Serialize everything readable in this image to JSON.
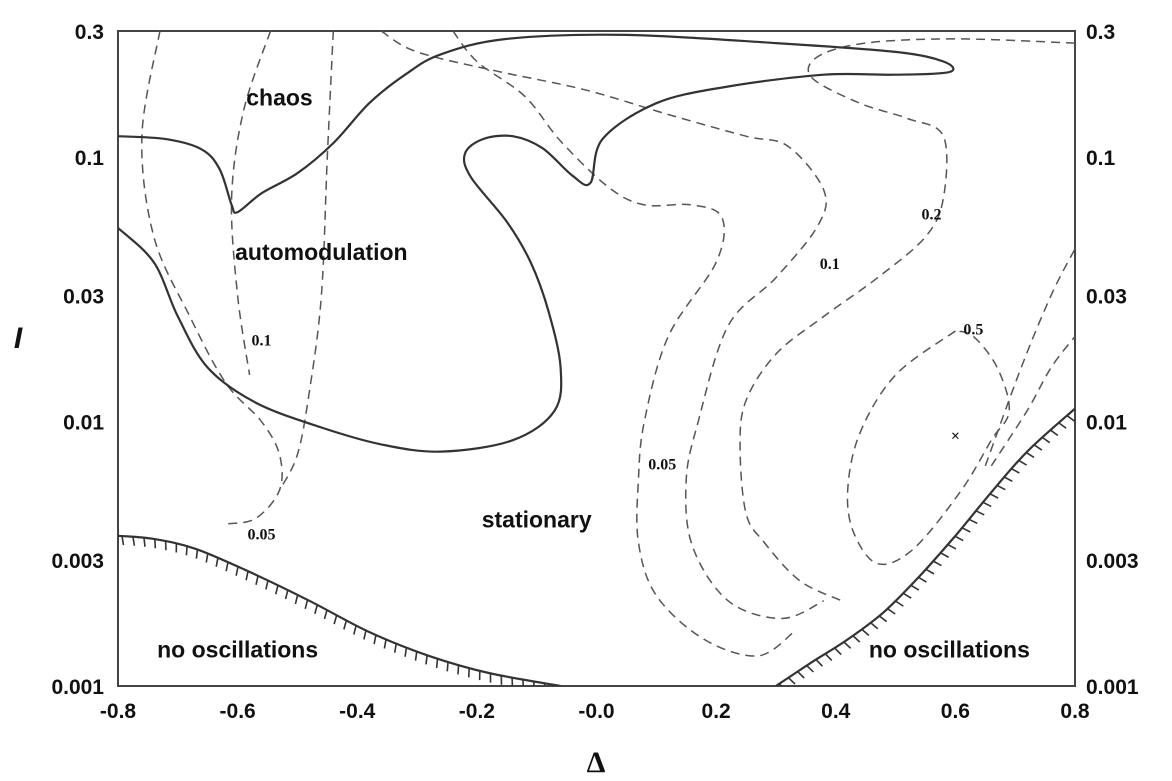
{
  "chart_data": {
    "type": "contour",
    "xlabel": "Δ",
    "ylabel": "I",
    "xlim": [
      -0.8,
      0.8
    ],
    "ylim": [
      0.001,
      0.3
    ],
    "yscale": "log",
    "x_ticks": [
      "-0.8",
      "-0.6",
      "-0.4",
      "-0.2",
      "-0.0",
      "0.2",
      "0.4",
      "0.6",
      "0.8"
    ],
    "x_tick_values": [
      -0.8,
      -0.6,
      -0.4,
      -0.2,
      0.0,
      0.2,
      0.4,
      0.6,
      0.8
    ],
    "y_ticks": [
      "0.001",
      "0.003",
      "0.01",
      "0.03",
      "0.1",
      "0.3"
    ],
    "y_tick_values": [
      0.001,
      0.003,
      0.01,
      0.03,
      0.1,
      0.3
    ],
    "regions": [
      {
        "label": "chaos",
        "x": -0.53,
        "y": 0.165
      },
      {
        "label": "automodulation",
        "x": -0.46,
        "y": 0.043
      },
      {
        "label": "stationary",
        "x": -0.1,
        "y": 0.0042
      },
      {
        "label": "no oscillations",
        "x": -0.6,
        "y": 0.00135
      },
      {
        "label": "no oscillations",
        "x": 0.59,
        "y": 0.00135
      }
    ],
    "contour_labels": [
      {
        "label": "0.1",
        "x": -0.56,
        "y": 0.02
      },
      {
        "label": "0.05",
        "x": -0.56,
        "y": 0.0037
      },
      {
        "label": "0.05",
        "x": 0.11,
        "y": 0.0068
      },
      {
        "label": "0.1",
        "x": 0.39,
        "y": 0.039
      },
      {
        "label": "0.2",
        "x": 0.56,
        "y": 0.06
      },
      {
        "label": "0.5",
        "x": 0.63,
        "y": 0.022
      }
    ],
    "marker": {
      "label": "×",
      "x": 0.6,
      "y": 0.0087
    },
    "solid_curves": [
      {
        "points": [
          [
            -0.8,
            0.12
          ],
          [
            -0.72,
            0.117
          ],
          [
            -0.66,
            0.107
          ],
          [
            -0.63,
            0.09
          ],
          [
            -0.61,
            0.066
          ],
          [
            -0.6,
            0.062
          ],
          [
            -0.56,
            0.073
          ],
          [
            -0.5,
            0.087
          ],
          [
            -0.44,
            0.113
          ],
          [
            -0.38,
            0.16
          ],
          [
            -0.32,
            0.205
          ],
          [
            -0.26,
            0.245
          ],
          [
            -0.15,
            0.28
          ],
          [
            0.05,
            0.29
          ],
          [
            0.3,
            0.27
          ],
          [
            0.5,
            0.25
          ],
          [
            0.58,
            0.23
          ],
          [
            0.59,
            0.21
          ],
          [
            0.5,
            0.205
          ],
          [
            0.38,
            0.205
          ],
          [
            0.22,
            0.185
          ],
          [
            0.1,
            0.16
          ],
          [
            0.01,
            0.117
          ],
          [
            -0.01,
            0.08
          ],
          [
            -0.04,
            0.085
          ],
          [
            -0.09,
            0.108
          ],
          [
            -0.14,
            0.12
          ],
          [
            -0.19,
            0.117
          ],
          [
            -0.22,
            0.103
          ],
          [
            -0.21,
            0.084
          ],
          [
            -0.15,
            0.057
          ],
          [
            -0.11,
            0.04
          ],
          [
            -0.08,
            0.026
          ],
          [
            -0.06,
            0.016
          ],
          [
            -0.07,
            0.011
          ],
          [
            -0.14,
            0.0085
          ],
          [
            -0.26,
            0.0077
          ],
          [
            -0.36,
            0.0082
          ],
          [
            -0.46,
            0.0095
          ],
          [
            -0.57,
            0.0118
          ],
          [
            -0.65,
            0.016
          ],
          [
            -0.7,
            0.025
          ],
          [
            -0.74,
            0.04
          ],
          [
            -0.8,
            0.054
          ]
        ]
      }
    ],
    "hatched_boundaries": [
      {
        "points": [
          [
            -0.8,
            0.0037
          ],
          [
            -0.74,
            0.0036
          ],
          [
            -0.67,
            0.0033
          ],
          [
            -0.58,
            0.0027
          ],
          [
            -0.48,
            0.0021
          ],
          [
            -0.38,
            0.0016
          ],
          [
            -0.28,
            0.0013
          ],
          [
            -0.18,
            0.00112
          ],
          [
            -0.06,
            0.001
          ]
        ]
      },
      {
        "points": [
          [
            0.3,
            0.001
          ],
          [
            0.36,
            0.00123
          ],
          [
            0.42,
            0.0015
          ],
          [
            0.48,
            0.0019
          ],
          [
            0.54,
            0.0026
          ],
          [
            0.6,
            0.0037
          ],
          [
            0.66,
            0.0054
          ],
          [
            0.72,
            0.0077
          ],
          [
            0.8,
            0.0112
          ]
        ]
      }
    ],
    "dashed_curves": [
      {
        "points": [
          [
            -0.73,
            0.3
          ],
          [
            -0.76,
            0.12
          ],
          [
            -0.74,
            0.05
          ],
          [
            -0.68,
            0.025
          ],
          [
            -0.62,
            0.014
          ],
          [
            -0.56,
            0.01
          ],
          [
            -0.53,
            0.0075
          ],
          [
            -0.53,
            0.0055
          ],
          [
            -0.57,
            0.0043
          ],
          [
            -0.62,
            0.0041
          ]
        ]
      },
      {
        "points": [
          [
            -0.545,
            0.3
          ],
          [
            -0.59,
            0.15
          ],
          [
            -0.61,
            0.07
          ],
          [
            -0.6,
            0.03
          ],
          [
            -0.58,
            0.015
          ]
        ]
      },
      {
        "points": [
          [
            -0.44,
            0.3
          ],
          [
            -0.45,
            0.1
          ],
          [
            -0.46,
            0.03
          ],
          [
            -0.48,
            0.013
          ],
          [
            -0.5,
            0.0075
          ],
          [
            -0.53,
            0.0055
          ]
        ]
      },
      {
        "points": [
          [
            -0.24,
            0.3
          ],
          [
            -0.2,
            0.23
          ],
          [
            -0.12,
            0.17
          ],
          [
            -0.06,
            0.115
          ],
          [
            0.02,
            0.077
          ],
          [
            0.08,
            0.066
          ],
          [
            0.16,
            0.066
          ],
          [
            0.21,
            0.059
          ],
          [
            0.2,
            0.04
          ],
          [
            0.12,
            0.021
          ],
          [
            0.08,
            0.01
          ],
          [
            0.07,
            0.006
          ],
          [
            0.07,
            0.0035
          ],
          [
            0.1,
            0.0022
          ],
          [
            0.18,
            0.0015
          ],
          [
            0.27,
            0.0013
          ],
          [
            0.33,
            0.0016
          ]
        ]
      },
      {
        "points": [
          [
            -0.36,
            0.3
          ],
          [
            -0.3,
            0.25
          ],
          [
            -0.16,
            0.21
          ],
          [
            -0.02,
            0.18
          ],
          [
            0.12,
            0.145
          ],
          [
            0.25,
            0.12
          ],
          [
            0.32,
            0.11
          ],
          [
            0.38,
            0.075
          ],
          [
            0.37,
            0.055
          ],
          [
            0.3,
            0.035
          ],
          [
            0.22,
            0.023
          ],
          [
            0.17,
            0.01
          ],
          [
            0.15,
            0.006
          ],
          [
            0.16,
            0.0034
          ],
          [
            0.22,
            0.0021
          ],
          [
            0.31,
            0.0018
          ],
          [
            0.38,
            0.0021
          ]
        ]
      },
      {
        "points": [
          [
            0.8,
            0.27
          ],
          [
            0.6,
            0.28
          ],
          [
            0.45,
            0.27
          ],
          [
            0.37,
            0.24
          ],
          [
            0.36,
            0.2
          ],
          [
            0.44,
            0.16
          ],
          [
            0.52,
            0.14
          ],
          [
            0.58,
            0.12
          ],
          [
            0.58,
            0.07
          ],
          [
            0.55,
            0.05
          ],
          [
            0.47,
            0.035
          ],
          [
            0.38,
            0.025
          ],
          [
            0.3,
            0.018
          ],
          [
            0.25,
            0.012
          ],
          [
            0.24,
            0.008
          ],
          [
            0.25,
            0.0045
          ],
          [
            0.28,
            0.0035
          ],
          [
            0.34,
            0.0025
          ],
          [
            0.41,
            0.0021
          ]
        ]
      },
      {
        "points": [
          [
            0.6,
            0.022
          ],
          [
            0.5,
            0.015
          ],
          [
            0.44,
            0.009
          ],
          [
            0.42,
            0.0055
          ],
          [
            0.43,
            0.0038
          ],
          [
            0.47,
            0.0029
          ],
          [
            0.53,
            0.0033
          ],
          [
            0.61,
            0.0055
          ],
          [
            0.66,
            0.0085
          ],
          [
            0.69,
            0.011
          ],
          [
            0.67,
            0.016
          ],
          [
            0.63,
            0.021
          ],
          [
            0.6,
            0.022
          ]
        ]
      },
      {
        "points": [
          [
            0.65,
            0.0068
          ],
          [
            0.71,
            0.016
          ],
          [
            0.76,
            0.03
          ],
          [
            0.8,
            0.045
          ]
        ]
      },
      {
        "points": [
          [
            0.66,
            0.0068
          ],
          [
            0.72,
            0.011
          ],
          [
            0.76,
            0.016
          ],
          [
            0.8,
            0.021
          ]
        ]
      }
    ]
  }
}
